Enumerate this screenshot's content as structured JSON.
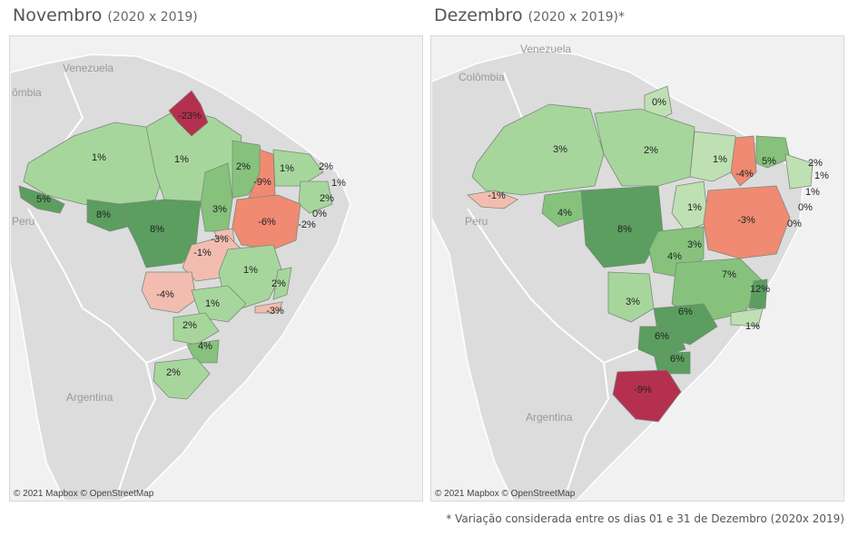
{
  "left_panel": {
    "title": "Novembro",
    "subtitle": "(2020 x 2019)",
    "countries": [
      "Venezuela",
      "ômbia",
      "Peru",
      "Argentina"
    ],
    "attribution": "© 2021 Mapbox  © OpenStreetMap",
    "labels": [
      "-23%",
      "1%",
      "1%",
      "2%",
      "-9%",
      "1%",
      "2%",
      "1%",
      "2%",
      "0%",
      "-2%",
      "5%",
      "8%",
      "8%",
      "3%",
      "-6%",
      "-3%",
      "-1%",
      "1%",
      "2%",
      "-4%",
      "1%",
      "-3%",
      "2%",
      "4%",
      "2%"
    ]
  },
  "right_panel": {
    "title": "Dezembro",
    "subtitle": "(2020 x 2019)*",
    "countries": [
      "Venezuela",
      "Colômbia",
      "Peru",
      "Argentina"
    ],
    "attribution": "© 2021 Mapbox  © OpenStreetMap",
    "labels": [
      "0%",
      "3%",
      "2%",
      "1%",
      "-4%",
      "5%",
      "2%",
      "1%",
      "1%",
      "-1%",
      "4%",
      "8%",
      "1%",
      "0%",
      "0%",
      "-3%",
      "3%",
      "4%",
      "7%",
      "3%",
      "12%",
      "6%",
      "1%",
      "6%",
      "6%",
      "-9%"
    ]
  },
  "footnote": "* Variação considerada entre os dias 01 e 31 de Dezembro (2020x 2019)",
  "colors": {
    "strong_negative": "#b5304f",
    "negative": "#f08a72",
    "slight_negative": "#f2bdb0",
    "neutral": "#e2d8cf",
    "light_positive": "#a7d69c",
    "positive": "#86c27c",
    "strong_positive": "#5b9e5f"
  }
}
